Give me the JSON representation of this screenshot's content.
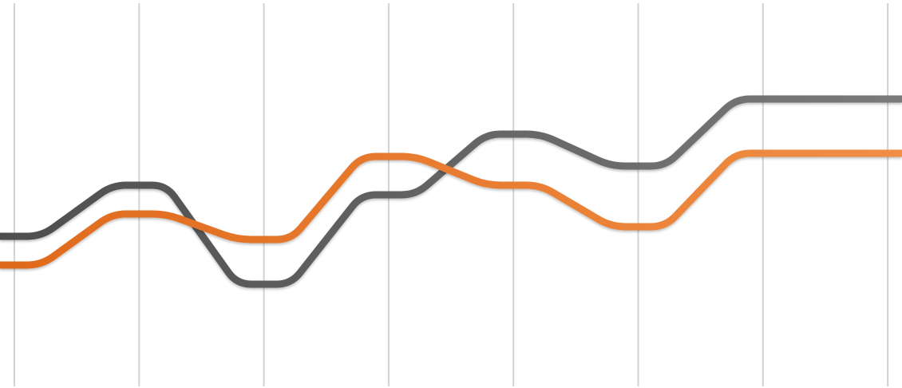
{
  "chart_data": {
    "type": "line",
    "title": "",
    "xlabel": "",
    "ylabel": "",
    "grid": {
      "vertical": true,
      "horizontal": false
    },
    "legend": "none",
    "x": [
      0,
      1,
      2,
      3,
      4,
      5,
      6,
      7
    ],
    "ylim": [
      0,
      10
    ],
    "series": [
      {
        "color": "#5f5f5f",
        "values": [
          3.6,
          5.2,
          2.1,
          4.9,
          6.8,
          5.8,
          7.9,
          7.9
        ]
      },
      {
        "color": "#e8732a",
        "values": [
          2.7,
          4.3,
          3.5,
          6.1,
          5.2,
          3.9,
          6.2,
          6.2
        ]
      }
    ]
  }
}
